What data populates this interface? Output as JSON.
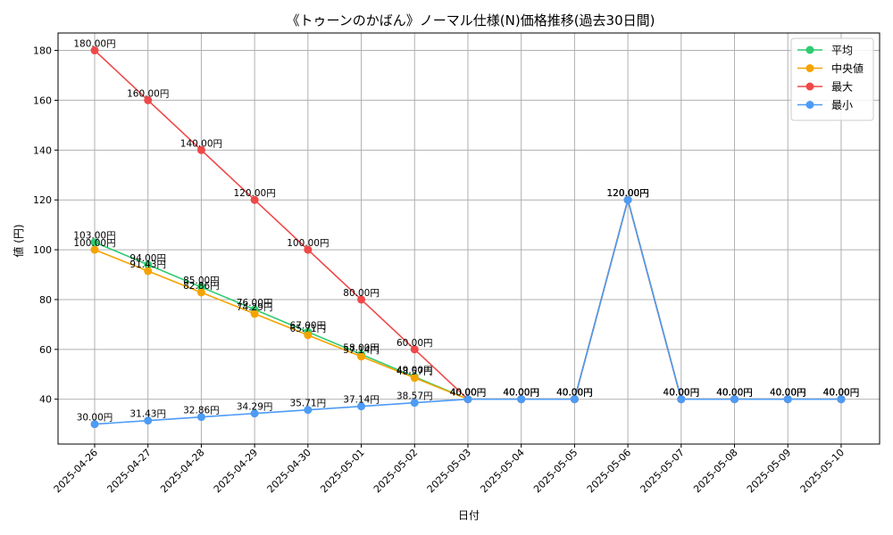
{
  "chart_data": {
    "type": "line",
    "title": "《トゥーンのかばん》ノーマル仕様(N)価格推移(過去30日間)",
    "xlabel": "日付",
    "ylabel": "値 (円)",
    "categories": [
      "2025-04-26",
      "2025-04-27",
      "2025-04-28",
      "2025-04-29",
      "2025-04-30",
      "2025-05-01",
      "2025-05-02",
      "2025-05-03",
      "2025-05-04",
      "2025-05-05",
      "2025-05-06",
      "2025-05-07",
      "2025-05-08",
      "2025-05-09",
      "2025-05-10"
    ],
    "ylim": [
      22,
      187
    ],
    "yticks": [
      40,
      60,
      80,
      100,
      120,
      140,
      160,
      180
    ],
    "grid": true,
    "legend_position": "top-right",
    "label_suffix": "円",
    "series": [
      {
        "name": "平均",
        "color": "#2ecc71",
        "values": [
          103.0,
          94.0,
          85.0,
          76.0,
          67.0,
          58.0,
          49.0,
          40.0,
          40.0,
          40.0,
          120.0,
          40.0,
          40.0,
          40.0,
          40.0
        ]
      },
      {
        "name": "中央値",
        "color": "#f5a300",
        "values": [
          100.0,
          91.43,
          82.86,
          74.29,
          65.71,
          57.14,
          48.57,
          40.0,
          40.0,
          40.0,
          120.0,
          40.0,
          40.0,
          40.0,
          40.0
        ]
      },
      {
        "name": "最大",
        "color": "#f04848",
        "values": [
          180.0,
          160.0,
          140.0,
          120.0,
          100.0,
          80.0,
          60.0,
          40.0,
          40.0,
          40.0,
          120.0,
          40.0,
          40.0,
          40.0,
          40.0
        ]
      },
      {
        "name": "最小",
        "color": "#4d9bf5",
        "values": [
          30.0,
          31.43,
          32.86,
          34.29,
          35.71,
          37.14,
          38.57,
          40.0,
          40.0,
          40.0,
          120.0,
          40.0,
          40.0,
          40.0,
          40.0
        ]
      }
    ]
  }
}
